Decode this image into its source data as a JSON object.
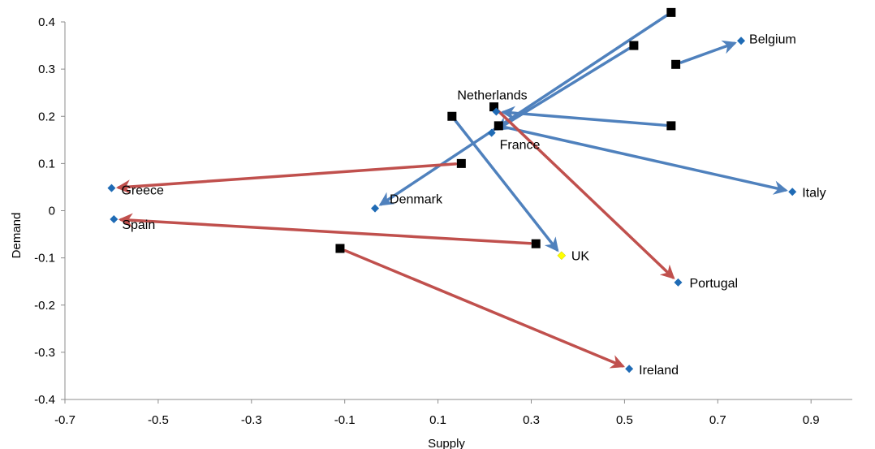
{
  "chart_data": {
    "type": "scatter",
    "title": "",
    "xlabel": "Supply",
    "ylabel": "Demand",
    "xlim": [
      -0.7,
      1.0
    ],
    "ylim": [
      -0.4,
      0.4
    ],
    "x_ticks": [
      "-0.7",
      "-0.5",
      "-0.3",
      "-0.1",
      "0.1",
      "0.3",
      "0.5",
      "0.7",
      "0.9"
    ],
    "y_ticks": [
      "0.4",
      "0.3",
      "0.2",
      "0.1",
      "0",
      "-0.1",
      "-0.2",
      "-0.3",
      "-0.4"
    ],
    "grid": false,
    "legend": "none",
    "colors": {
      "blue_arrow": "#4f81bd",
      "red_arrow": "#c0504d",
      "end_marker": "#1f6bb5",
      "uk_marker": "#ffff00",
      "start_marker": "#000000"
    },
    "movements": [
      {
        "label": "Belgium",
        "from": [
          0.61,
          0.31
        ],
        "to": [
          0.75,
          0.36
        ],
        "arrow": "blue"
      },
      {
        "label": "Netherlands",
        "from": [
          0.6,
          0.18
        ],
        "to": [
          0.225,
          0.21
        ],
        "arrow": "blue"
      },
      {
        "label": "France",
        "from": [
          0.52,
          0.35
        ],
        "to": [
          0.215,
          0.165
        ],
        "arrow": "blue"
      },
      {
        "label": "Denmark",
        "from": [
          0.6,
          0.42
        ],
        "to": [
          -0.035,
          0.005
        ],
        "arrow": "blue"
      },
      {
        "label": "Italy",
        "from": [
          0.23,
          0.18
        ],
        "to": [
          0.86,
          0.04
        ],
        "arrow": "blue"
      },
      {
        "label": "UK",
        "from": [
          0.13,
          0.2
        ],
        "to": [
          0.365,
          -0.095
        ],
        "arrow": "blue"
      },
      {
        "label": "Greece",
        "from": [
          0.15,
          0.1
        ],
        "to": [
          -0.6,
          0.048
        ],
        "arrow": "red"
      },
      {
        "label": "Spain",
        "from": [
          0.31,
          -0.07
        ],
        "to": [
          -0.595,
          -0.018
        ],
        "arrow": "red"
      },
      {
        "label": "Portugal",
        "from": [
          0.22,
          0.22
        ],
        "to": [
          0.615,
          -0.152
        ],
        "arrow": "red"
      },
      {
        "label": "Ireland",
        "from": [
          -0.11,
          -0.08
        ],
        "to": [
          0.51,
          -0.335
        ],
        "arrow": "red"
      }
    ]
  }
}
